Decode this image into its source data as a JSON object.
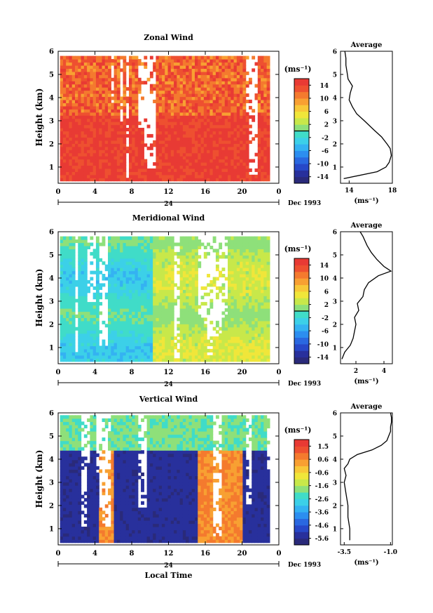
{
  "chart_data": [
    {
      "type": "heatmap",
      "title": "Zonal Wind",
      "ylabel": "Height (km)",
      "xticks": [
        "0",
        "4",
        "8",
        "12",
        "16",
        "20",
        "0"
      ],
      "yticks": [
        "1",
        "2",
        "3",
        "4",
        "5",
        "6"
      ],
      "xlim": [
        0,
        24
      ],
      "ylim": [
        0.3,
        6.0
      ],
      "data_extent": {
        "time": [
          0.2,
          23.0
        ],
        "height": [
          0.4,
          5.8
        ]
      },
      "date_marker": "24",
      "date_label": "Dec 1993",
      "colorbar": {
        "unit": "(ms⁻¹)",
        "ticks": [
          "14",
          "10",
          "6",
          "2",
          "-2",
          "-6",
          "-10",
          "-14"
        ],
        "levels": [
          -16,
          -14,
          -12,
          -10,
          -8,
          -6,
          -4,
          -2,
          0,
          2,
          4,
          6,
          8,
          10,
          12,
          14,
          16
        ],
        "zero_line": true
      },
      "typical_value": 15,
      "profile": {
        "title": "Average",
        "xlabel": "(ms⁻¹)",
        "xticks": [
          "14",
          "18"
        ],
        "xlim": [
          13.2,
          18.0
        ],
        "height": [
          0.5,
          0.8,
          1.0,
          1.2,
          1.5,
          1.8,
          2.0,
          2.3,
          2.6,
          3.0,
          3.3,
          3.6,
          3.9,
          4.2,
          4.5,
          4.8,
          5.1,
          5.4,
          5.7,
          6.0
        ],
        "values": [
          13.5,
          16.6,
          17.4,
          17.7,
          17.9,
          17.8,
          17.5,
          17.0,
          16.3,
          15.4,
          14.7,
          14.3,
          14.0,
          14.1,
          14.3,
          13.9,
          13.8,
          13.7,
          13.7,
          13.6
        ]
      }
    },
    {
      "type": "heatmap",
      "title": "Meridional Wind",
      "ylabel": "Height (km)",
      "xticks": [
        "0",
        "4",
        "8",
        "12",
        "16",
        "20",
        "0"
      ],
      "yticks": [
        "1",
        "2",
        "3",
        "4",
        "5",
        "6"
      ],
      "xlim": [
        0,
        24
      ],
      "ylim": [
        0.3,
        6.0
      ],
      "data_extent": {
        "time": [
          0.2,
          23.0
        ],
        "height": [
          0.4,
          5.8
        ]
      },
      "date_marker": "24",
      "date_label": "Dec 1993",
      "colorbar": {
        "unit": "(ms⁻¹)",
        "ticks": [
          "14",
          "10",
          "6",
          "2",
          "-2",
          "-6",
          "-10",
          "-14"
        ],
        "levels": [
          -16,
          -14,
          -12,
          -10,
          -8,
          -6,
          -4,
          -2,
          0,
          2,
          4,
          6,
          8,
          10,
          12,
          14,
          16
        ],
        "zero_line": true
      },
      "typical_value": 1,
      "profile": {
        "title": "Average",
        "xlabel": "(ms⁻¹)",
        "xticks": [
          "2",
          "4"
        ],
        "xlim": [
          0.9,
          4.6
        ],
        "height": [
          0.5,
          0.8,
          1.1,
          1.4,
          1.7,
          2.0,
          2.3,
          2.6,
          2.9,
          3.2,
          3.5,
          3.8,
          4.1,
          4.3,
          4.5,
          4.8,
          5.1,
          5.4,
          5.8,
          6.0
        ],
        "values": [
          1.0,
          1.2,
          1.6,
          1.8,
          1.9,
          2.0,
          1.9,
          2.2,
          2.1,
          2.5,
          2.6,
          2.9,
          3.6,
          4.5,
          4.0,
          3.5,
          3.1,
          2.8,
          2.5,
          2.3
        ]
      }
    },
    {
      "type": "heatmap",
      "title": "Vertical Wind",
      "ylabel": "Height (km)",
      "xlabel": "Local Time",
      "xticks": [
        "0",
        "4",
        "8",
        "12",
        "16",
        "20",
        "0"
      ],
      "yticks": [
        "1",
        "2",
        "3",
        "4",
        "5",
        "6"
      ],
      "xlim": [
        0,
        24
      ],
      "ylim": [
        0.3,
        6.0
      ],
      "data_extent": {
        "time": [
          0.2,
          23.0
        ],
        "height": [
          0.4,
          5.9
        ]
      },
      "date_marker": "24",
      "date_label": "Dec 1993",
      "colorbar": {
        "unit": "(ms⁻¹)",
        "ticks": [
          "1.5",
          "0.6",
          "-0.6",
          "-1.6",
          "-2.6",
          "-3.6",
          "-4.6",
          "-5.6"
        ],
        "levels": [
          -6.0,
          -5.5,
          -5.0,
          -4.5,
          -4.0,
          -3.5,
          -3.0,
          -2.5,
          -2.0,
          -1.5,
          -1.0,
          -0.5,
          0.0,
          0.5,
          1.0,
          1.5,
          2.0
        ],
        "zero_line": false
      },
      "typical_value": -5.5,
      "profile": {
        "title": "Average",
        "xlabel": "(ms⁻¹)",
        "xticks": [
          "-3.5",
          "-1.0"
        ],
        "xlim": [
          -3.7,
          -0.9
        ],
        "height": [
          0.5,
          1.0,
          1.5,
          2.0,
          2.5,
          3.0,
          3.3,
          3.6,
          3.8,
          4.0,
          4.2,
          4.4,
          4.6,
          4.8,
          5.0,
          5.2,
          5.4,
          5.6,
          5.8,
          6.0
        ],
        "values": [
          -3.2,
          -3.2,
          -3.3,
          -3.3,
          -3.4,
          -3.5,
          -3.4,
          -3.5,
          -3.3,
          -3.2,
          -2.8,
          -2.0,
          -1.5,
          -1.2,
          -1.1,
          -1.0,
          -1.0,
          -0.95,
          -0.95,
          -1.0
        ]
      }
    }
  ]
}
